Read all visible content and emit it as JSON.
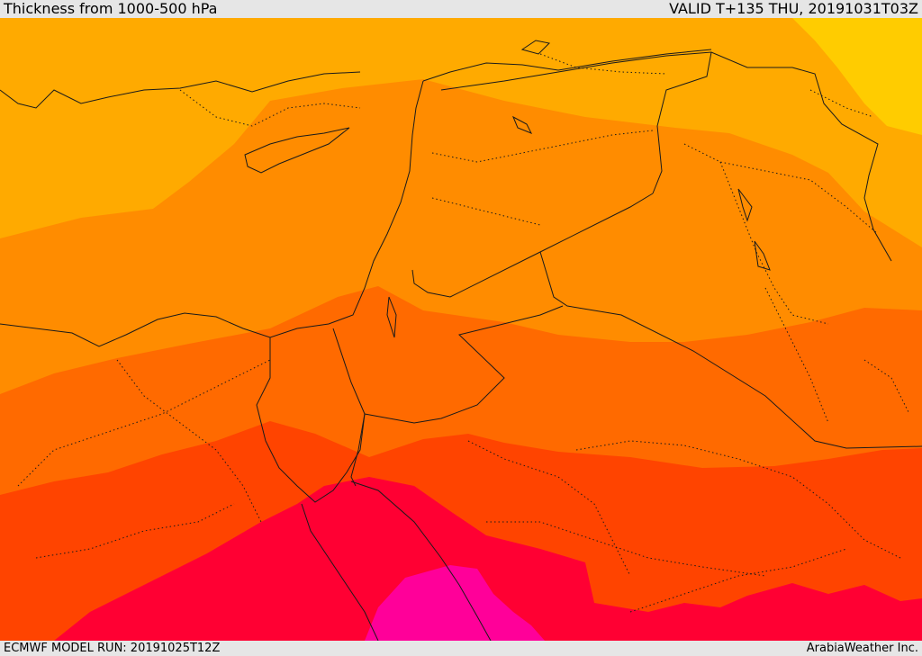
{
  "header": {
    "title": "Thickness from 1000-500 hPa",
    "valid": "VALID T+135 THU, 20191031T03Z"
  },
  "footer": {
    "model_run": "ECMWF MODEL RUN: 20191025T12Z",
    "credit": "ArabiaWeather Inc."
  },
  "colors": {
    "band_0": "#ffcc00",
    "band_1": "#ffaa00",
    "band_2": "#ff8c00",
    "band_3": "#ff6a00",
    "band_4": "#ff4400",
    "band_5": "#ff0033",
    "band_6": "#ff0099"
  }
}
